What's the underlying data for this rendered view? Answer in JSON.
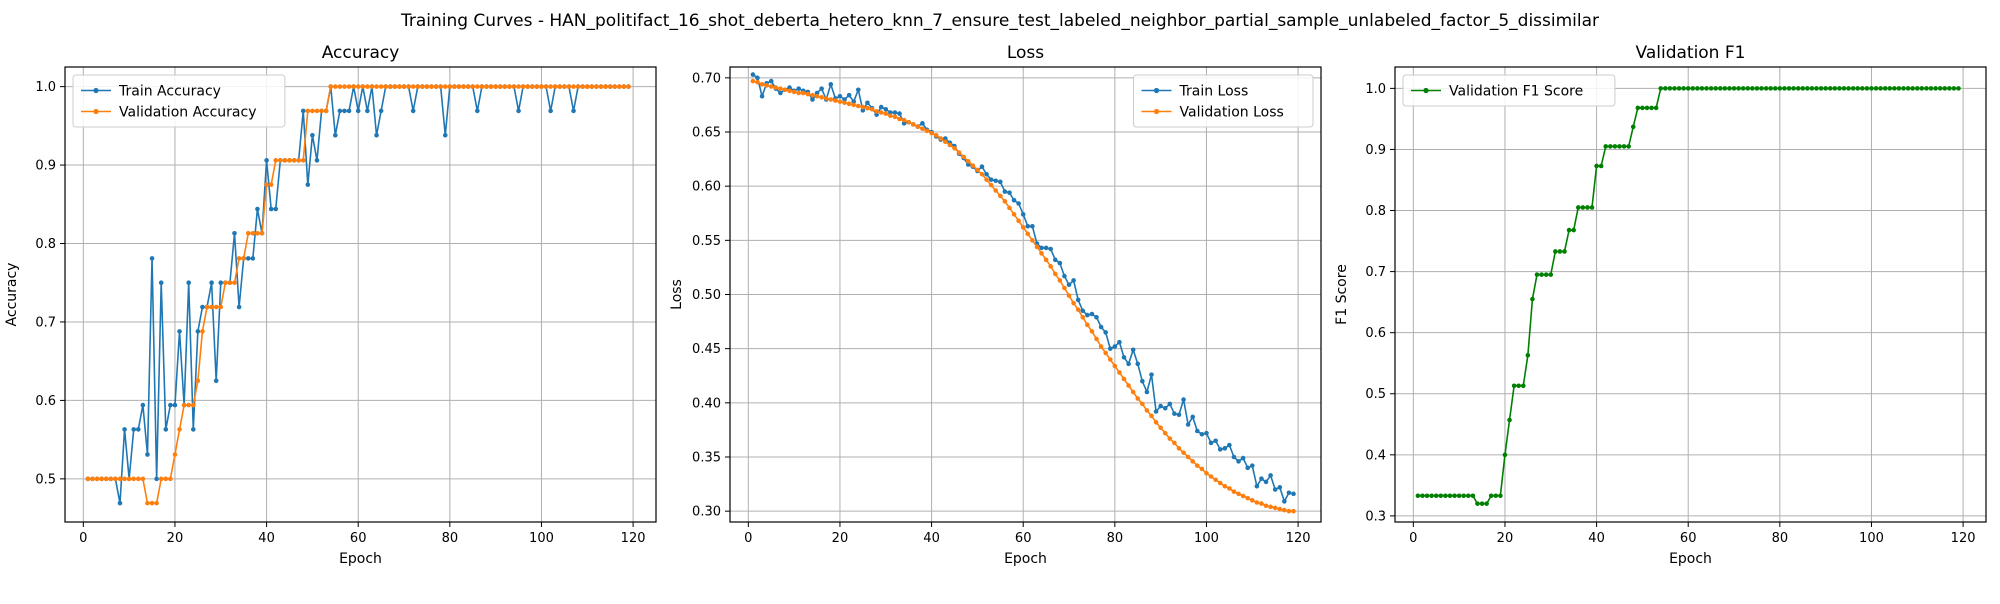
{
  "figure": {
    "suptitle": "Training Curves - HAN_politifact_16_shot_deberta_hetero_knn_7_ensure_test_labeled_neighbor_partial_sample_unlabeled_factor_5_dissimilar"
  },
  "chart_data": [
    {
      "type": "line",
      "title": "Accuracy",
      "xlabel": "Epoch",
      "ylabel": "Accuracy",
      "xlim": [
        -4,
        125
      ],
      "ylim": [
        0.445,
        1.025
      ],
      "xticks": [
        0,
        20,
        40,
        60,
        80,
        100,
        120
      ],
      "yticks": [
        0.5,
        0.6,
        0.7,
        0.8,
        0.9,
        1.0
      ],
      "ytick_labels": [
        "0.5",
        "0.6",
        "0.7",
        "0.8",
        "0.9",
        "1.0"
      ],
      "grid": true,
      "legend_position": "upper-left",
      "series": [
        {
          "name": "Train Accuracy",
          "color": "#1f77b4",
          "x_start": 1,
          "values": [
            0.5,
            0.5,
            0.5,
            0.5,
            0.5,
            0.5,
            0.5,
            0.469,
            0.563,
            0.5,
            0.563,
            0.563,
            0.594,
            0.531,
            0.781,
            0.5,
            0.75,
            0.563,
            0.594,
            0.594,
            0.688,
            0.594,
            0.75,
            0.563,
            0.688,
            0.719,
            0.719,
            0.75,
            0.625,
            0.75,
            0.75,
            0.75,
            0.813,
            0.719,
            0.781,
            0.781,
            0.781,
            0.844,
            0.813,
            0.906,
            0.844,
            0.844,
            0.906,
            0.906,
            0.906,
            0.906,
            0.906,
            0.969,
            0.875,
            0.938,
            0.906,
            0.969,
            0.969,
            1.0,
            0.938,
            0.969,
            0.969,
            0.969,
            1.0,
            0.969,
            1.0,
            0.969,
            1.0,
            0.938,
            0.969,
            1.0,
            1.0,
            1.0,
            1.0,
            1.0,
            1.0,
            0.969,
            1.0,
            1.0,
            1.0,
            1.0,
            1.0,
            1.0,
            0.938,
            1.0,
            1.0,
            1.0,
            1.0,
            1.0,
            1.0,
            0.969,
            1.0,
            1.0,
            1.0,
            1.0,
            1.0,
            1.0,
            1.0,
            1.0,
            0.969,
            1.0,
            1.0,
            1.0,
            1.0,
            1.0,
            1.0,
            0.969,
            1.0,
            1.0,
            1.0,
            1.0,
            0.969,
            1.0,
            1.0,
            1.0,
            1.0,
            1.0,
            1.0,
            1.0,
            1.0,
            1.0,
            1.0,
            1.0,
            1.0
          ]
        },
        {
          "name": "Validation Accuracy",
          "color": "#ff7f0e",
          "x_start": 1,
          "values": [
            0.5,
            0.5,
            0.5,
            0.5,
            0.5,
            0.5,
            0.5,
            0.5,
            0.5,
            0.5,
            0.5,
            0.5,
            0.5,
            0.469,
            0.469,
            0.469,
            0.5,
            0.5,
            0.5,
            0.531,
            0.563,
            0.594,
            0.594,
            0.594,
            0.625,
            0.688,
            0.719,
            0.719,
            0.719,
            0.719,
            0.75,
            0.75,
            0.75,
            0.781,
            0.781,
            0.813,
            0.813,
            0.813,
            0.813,
            0.875,
            0.875,
            0.906,
            0.906,
            0.906,
            0.906,
            0.906,
            0.906,
            0.906,
            0.969,
            0.969,
            0.969,
            0.969,
            0.969,
            1.0,
            1.0,
            1.0,
            1.0,
            1.0,
            1.0,
            1.0,
            1.0,
            1.0,
            1.0,
            1.0,
            1.0,
            1.0,
            1.0,
            1.0,
            1.0,
            1.0,
            1.0,
            1.0,
            1.0,
            1.0,
            1.0,
            1.0,
            1.0,
            1.0,
            1.0,
            1.0,
            1.0,
            1.0,
            1.0,
            1.0,
            1.0,
            1.0,
            1.0,
            1.0,
            1.0,
            1.0,
            1.0,
            1.0,
            1.0,
            1.0,
            1.0,
            1.0,
            1.0,
            1.0,
            1.0,
            1.0,
            1.0,
            1.0,
            1.0,
            1.0,
            1.0,
            1.0,
            1.0,
            1.0,
            1.0,
            1.0,
            1.0,
            1.0,
            1.0,
            1.0,
            1.0,
            1.0,
            1.0,
            1.0,
            1.0
          ]
        }
      ]
    },
    {
      "type": "line",
      "title": "Loss",
      "xlabel": "Epoch",
      "ylabel": "Loss",
      "xlim": [
        -4,
        125
      ],
      "ylim": [
        0.29,
        0.71
      ],
      "xticks": [
        0,
        20,
        40,
        60,
        80,
        100,
        120
      ],
      "yticks": [
        0.3,
        0.35,
        0.4,
        0.45,
        0.5,
        0.55,
        0.6,
        0.65,
        0.7
      ],
      "ytick_labels": [
        "0.30",
        "0.35",
        "0.40",
        "0.45",
        "0.50",
        "0.55",
        "0.60",
        "0.65",
        "0.70"
      ],
      "grid": true,
      "legend_position": "upper-right",
      "series": [
        {
          "name": "Train Loss",
          "color": "#1f77b4",
          "x_start": 1,
          "values": [
            0.703,
            0.7,
            0.683,
            0.695,
            0.697,
            0.69,
            0.686,
            0.689,
            0.691,
            0.688,
            0.69,
            0.688,
            0.687,
            0.68,
            0.686,
            0.69,
            0.68,
            0.694,
            0.681,
            0.683,
            0.68,
            0.684,
            0.678,
            0.689,
            0.67,
            0.677,
            0.672,
            0.666,
            0.673,
            0.671,
            0.668,
            0.668,
            0.667,
            0.658,
            0.659,
            0.657,
            0.655,
            0.658,
            0.652,
            0.65,
            0.646,
            0.643,
            0.644,
            0.64,
            0.637,
            0.63,
            0.626,
            0.62,
            0.618,
            0.614,
            0.618,
            0.611,
            0.606,
            0.605,
            0.604,
            0.595,
            0.594,
            0.587,
            0.584,
            0.574,
            0.563,
            0.563,
            0.547,
            0.543,
            0.543,
            0.542,
            0.532,
            0.529,
            0.517,
            0.509,
            0.513,
            0.495,
            0.485,
            0.481,
            0.482,
            0.479,
            0.47,
            0.465,
            0.45,
            0.452,
            0.456,
            0.442,
            0.436,
            0.449,
            0.436,
            0.42,
            0.41,
            0.426,
            0.392,
            0.397,
            0.395,
            0.399,
            0.39,
            0.389,
            0.403,
            0.38,
            0.387,
            0.374,
            0.371,
            0.372,
            0.363,
            0.365,
            0.357,
            0.358,
            0.361,
            0.35,
            0.346,
            0.349,
            0.34,
            0.342,
            0.323,
            0.33,
            0.327,
            0.333,
            0.32,
            0.322,
            0.309,
            0.317,
            0.316
          ]
        },
        {
          "name": "Validation Loss",
          "color": "#ff7f0e",
          "x_start": 1,
          "values": [
            0.697,
            0.696,
            0.694,
            0.693,
            0.692,
            0.691,
            0.69,
            0.689,
            0.688,
            0.687,
            0.686,
            0.686,
            0.685,
            0.684,
            0.683,
            0.682,
            0.681,
            0.68,
            0.679,
            0.678,
            0.677,
            0.676,
            0.675,
            0.674,
            0.673,
            0.672,
            0.671,
            0.669,
            0.668,
            0.667,
            0.665,
            0.664,
            0.662,
            0.661,
            0.659,
            0.657,
            0.655,
            0.653,
            0.651,
            0.649,
            0.647,
            0.644,
            0.641,
            0.638,
            0.635,
            0.631,
            0.627,
            0.623,
            0.619,
            0.615,
            0.611,
            0.606,
            0.601,
            0.596,
            0.591,
            0.586,
            0.58,
            0.574,
            0.568,
            0.562,
            0.556,
            0.55,
            0.544,
            0.538,
            0.532,
            0.526,
            0.519,
            0.513,
            0.506,
            0.499,
            0.492,
            0.486,
            0.479,
            0.472,
            0.466,
            0.459,
            0.452,
            0.446,
            0.44,
            0.434,
            0.428,
            0.422,
            0.416,
            0.41,
            0.404,
            0.399,
            0.393,
            0.388,
            0.382,
            0.377,
            0.372,
            0.367,
            0.363,
            0.358,
            0.354,
            0.35,
            0.346,
            0.342,
            0.339,
            0.335,
            0.332,
            0.329,
            0.326,
            0.323,
            0.321,
            0.318,
            0.316,
            0.314,
            0.312,
            0.31,
            0.308,
            0.307,
            0.305,
            0.304,
            0.303,
            0.302,
            0.301,
            0.3,
            0.3
          ]
        }
      ]
    },
    {
      "type": "line",
      "title": "Validation F1",
      "xlabel": "Epoch",
      "ylabel": "F1 Score",
      "xlim": [
        -4,
        125
      ],
      "ylim": [
        0.29,
        1.035
      ],
      "xticks": [
        0,
        20,
        40,
        60,
        80,
        100,
        120
      ],
      "yticks": [
        0.3,
        0.4,
        0.5,
        0.6,
        0.7,
        0.8,
        0.9,
        1.0
      ],
      "ytick_labels": [
        "0.3",
        "0.4",
        "0.5",
        "0.6",
        "0.7",
        "0.8",
        "0.9",
        "1.0"
      ],
      "grid": true,
      "legend_position": "upper-left",
      "series": [
        {
          "name": "Validation F1 Score",
          "color": "#008000",
          "x_start": 1,
          "values": [
            0.333,
            0.333,
            0.333,
            0.333,
            0.333,
            0.333,
            0.333,
            0.333,
            0.333,
            0.333,
            0.333,
            0.333,
            0.333,
            0.32,
            0.32,
            0.32,
            0.333,
            0.333,
            0.333,
            0.4,
            0.457,
            0.513,
            0.513,
            0.513,
            0.563,
            0.655,
            0.695,
            0.695,
            0.695,
            0.695,
            0.733,
            0.733,
            0.733,
            0.768,
            0.768,
            0.805,
            0.805,
            0.805,
            0.805,
            0.873,
            0.873,
            0.905,
            0.905,
            0.905,
            0.905,
            0.905,
            0.905,
            0.937,
            0.968,
            0.968,
            0.968,
            0.968,
            0.968,
            1.0,
            1.0,
            1.0,
            1.0,
            1.0,
            1.0,
            1.0,
            1.0,
            1.0,
            1.0,
            1.0,
            1.0,
            1.0,
            1.0,
            1.0,
            1.0,
            1.0,
            1.0,
            1.0,
            1.0,
            1.0,
            1.0,
            1.0,
            1.0,
            1.0,
            1.0,
            1.0,
            1.0,
            1.0,
            1.0,
            1.0,
            1.0,
            1.0,
            1.0,
            1.0,
            1.0,
            1.0,
            1.0,
            1.0,
            1.0,
            1.0,
            1.0,
            1.0,
            1.0,
            1.0,
            1.0,
            1.0,
            1.0,
            1.0,
            1.0,
            1.0,
            1.0,
            1.0,
            1.0,
            1.0,
            1.0,
            1.0,
            1.0,
            1.0,
            1.0,
            1.0,
            1.0,
            1.0,
            1.0,
            1.0,
            1.0
          ]
        }
      ]
    }
  ]
}
